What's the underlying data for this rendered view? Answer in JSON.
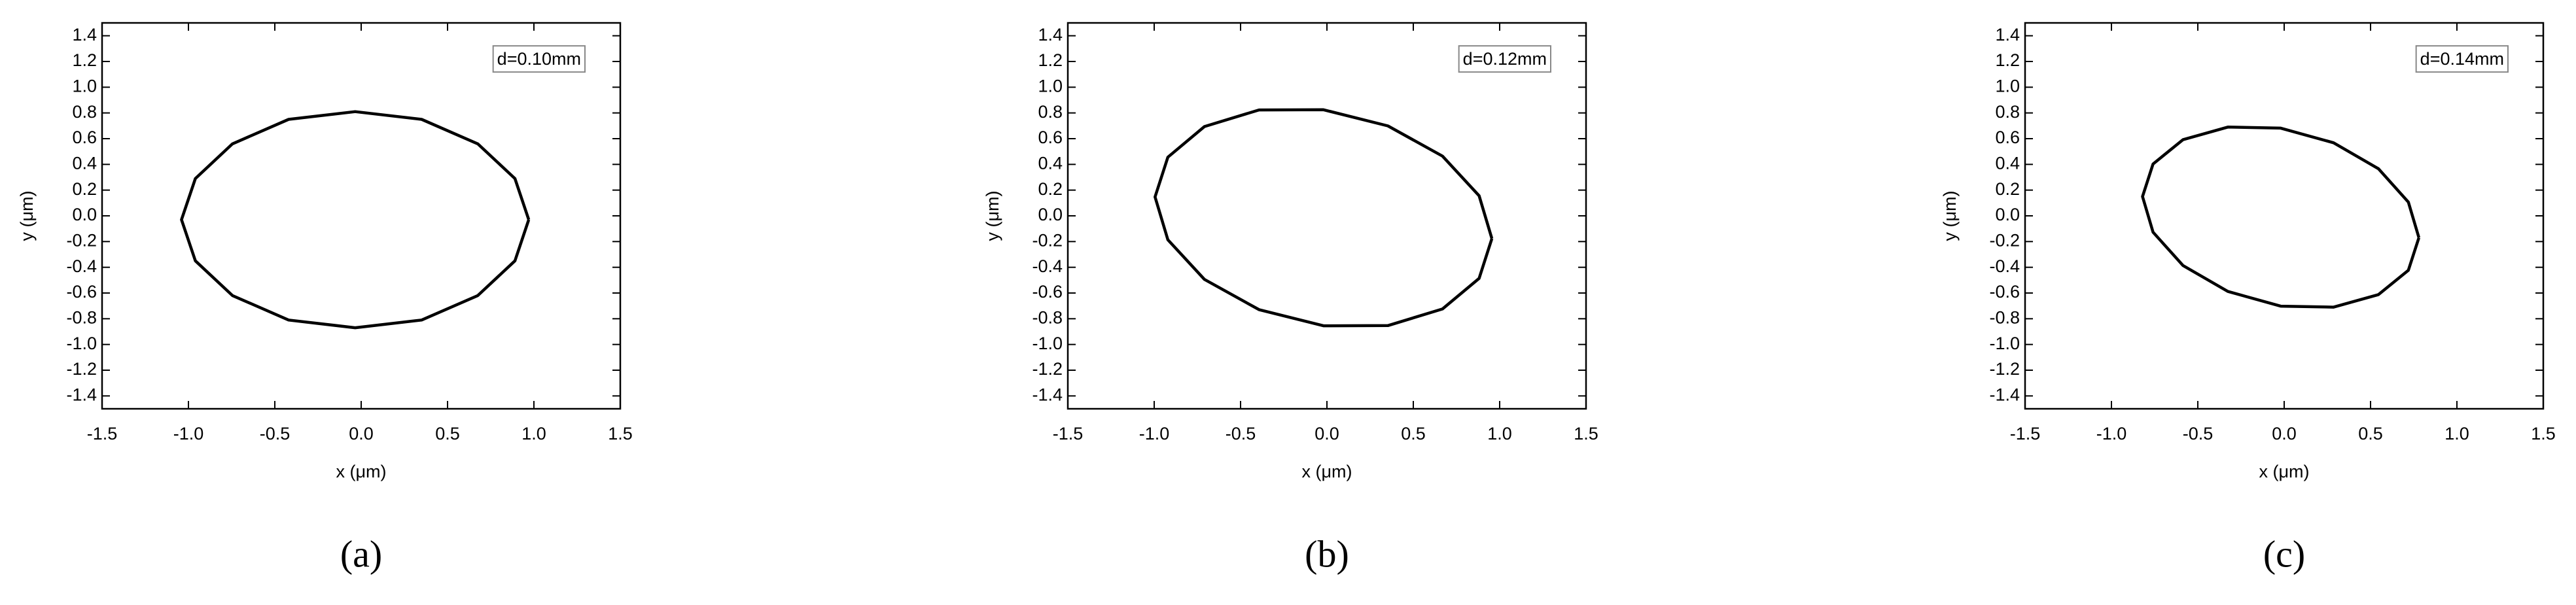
{
  "chart_data": [
    {
      "type": "line",
      "annotation": "d=0.10mm",
      "panel_label": "(a)",
      "xlabel": "x (μm)",
      "ylabel": "y (μm)",
      "color": "#000000",
      "x": [
        0.97,
        0.89,
        0.675,
        0.35,
        -0.035,
        -0.42,
        -0.745,
        -0.96,
        -1.04,
        -0.96,
        -0.745,
        -0.42,
        -0.035,
        0.35,
        0.675,
        0.89,
        0.97
      ],
      "y": [
        -0.03,
        0.29,
        0.56,
        0.75,
        0.81,
        0.75,
        0.56,
        0.29,
        -0.03,
        -0.35,
        -0.62,
        -0.81,
        -0.87,
        -0.81,
        -0.62,
        -0.35,
        -0.03
      ],
      "xlim": [
        -1.5,
        1.5
      ],
      "ylim": [
        -1.5,
        1.5
      ],
      "xticks": [
        -1.5,
        {
          "value": -1,
          "label": "-1.0"
        },
        -0.5,
        {
          "value": 0,
          "label": "0.0"
        },
        0.5,
        {
          "value": 1,
          "label": "1.0"
        },
        1.5
      ],
      "yticks": [
        -1.4,
        -1.2,
        {
          "value": -1,
          "label": "-1.0"
        },
        -0.8,
        -0.6,
        -0.4,
        -0.2,
        {
          "value": 0,
          "label": "0.0"
        },
        0.2,
        0.4,
        0.6,
        0.8,
        {
          "value": 1,
          "label": "1.0"
        },
        1.2,
        1.4
      ]
    },
    {
      "type": "line",
      "annotation": "d=0.12mm",
      "panel_label": "(b)",
      "xlabel": "x (μm)",
      "ylabel": "y (μm)",
      "color": "#000000",
      "x": [
        0.955,
        0.881,
        0.669,
        0.353,
        -0.02,
        -0.393,
        -0.709,
        -0.921,
        -0.995,
        -0.921,
        -0.709,
        -0.393,
        -0.02,
        0.353,
        0.669,
        0.881,
        0.955
      ],
      "y": [
        -0.177,
        0.156,
        0.464,
        0.699,
        0.825,
        0.823,
        0.694,
        0.456,
        0.147,
        -0.186,
        -0.494,
        -0.729,
        -0.855,
        -0.853,
        -0.724,
        -0.486,
        -0.177
      ],
      "xlim": [
        -1.5,
        1.5
      ],
      "ylim": [
        -1.5,
        1.5
      ],
      "xticks": [
        -1.5,
        {
          "value": -1,
          "label": "-1.0"
        },
        -0.5,
        {
          "value": 0,
          "label": "0.0"
        },
        0.5,
        {
          "value": 1,
          "label": "1.0"
        },
        1.5
      ],
      "yticks": [
        -1.4,
        -1.2,
        {
          "value": -1,
          "label": "-1.0"
        },
        -0.8,
        -0.6,
        -0.4,
        -0.2,
        {
          "value": 0,
          "label": "0.0"
        },
        0.2,
        0.4,
        0.6,
        0.8,
        {
          "value": 1,
          "label": "1.0"
        },
        1.2,
        1.4
      ]
    },
    {
      "type": "line",
      "annotation": "d=0.14mm",
      "panel_label": "(c)",
      "xlabel": "x (μm)",
      "ylabel": "y (μm)",
      "color": "#000000",
      "x": [
        0.78,
        0.719,
        0.546,
        0.286,
        -0.02,
        -0.326,
        -0.586,
        -0.759,
        -0.82,
        -0.759,
        -0.586,
        -0.326,
        -0.02,
        0.286,
        0.546,
        0.719,
        0.78
      ],
      "y": [
        -0.17,
        0.107,
        0.366,
        0.568,
        0.682,
        0.69,
        0.592,
        0.403,
        0.15,
        -0.127,
        -0.386,
        -0.588,
        -0.702,
        -0.71,
        -0.612,
        -0.423,
        -0.17
      ],
      "xlim": [
        -1.5,
        1.5
      ],
      "ylim": [
        -1.5,
        1.5
      ],
      "xticks": [
        -1.5,
        {
          "value": -1,
          "label": "-1.0"
        },
        -0.5,
        {
          "value": 0,
          "label": "0.0"
        },
        0.5,
        {
          "value": 1,
          "label": "1.0"
        },
        1.5
      ],
      "yticks": [
        -1.4,
        -1.2,
        {
          "value": -1,
          "label": "-1.0"
        },
        -0.8,
        -0.6,
        -0.4,
        -0.2,
        {
          "value": 0,
          "label": "0.0"
        },
        0.2,
        0.4,
        0.6,
        0.8,
        {
          "value": 1,
          "label": "1.0"
        },
        1.2,
        1.4
      ]
    }
  ]
}
